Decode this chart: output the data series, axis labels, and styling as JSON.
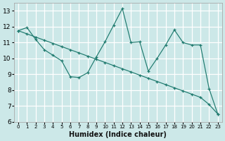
{
  "xlabel": "Humidex (Indice chaleur)",
  "x_values": [
    0,
    1,
    2,
    3,
    4,
    5,
    6,
    7,
    8,
    9,
    10,
    11,
    12,
    13,
    14,
    15,
    16,
    17,
    18,
    19,
    20,
    21,
    22,
    23
  ],
  "line_jagged": [
    11.75,
    11.95,
    11.2,
    10.55,
    10.2,
    9.85,
    8.85,
    8.8,
    9.1,
    10.1,
    11.05,
    12.1,
    13.15,
    11.0,
    11.05,
    9.2,
    10.0,
    10.85,
    11.8,
    11.0,
    10.85,
    10.85,
    8.1,
    6.5
  ],
  "line_diagonal": [
    11.75,
    11.55,
    11.35,
    11.15,
    10.95,
    10.75,
    10.55,
    10.35,
    10.15,
    9.95,
    9.75,
    9.55,
    9.35,
    9.15,
    8.95,
    8.75,
    8.55,
    8.35,
    8.15,
    7.95,
    7.75,
    7.55,
    7.1,
    6.5
  ],
  "line_color": "#1e7a6e",
  "bg_color": "#cce8e8",
  "grid_color": "#ffffff",
  "ylim": [
    6,
    13.5
  ],
  "yticks": [
    6,
    7,
    8,
    9,
    10,
    11,
    12,
    13
  ],
  "xlim": [
    -0.5,
    23.5
  ]
}
